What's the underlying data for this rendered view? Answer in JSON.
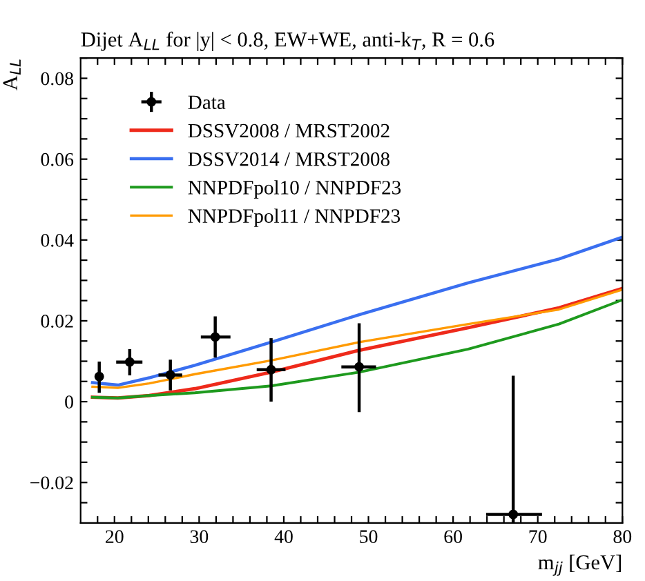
{
  "chart_data": {
    "type": "line",
    "title": "Dijet A$_{LL}$ for |y| < 0.8, EW+WE, anti-k$_{T}$, R = 0.6",
    "xlabel": "m$_{jj}$ [GeV]",
    "ylabel": "A$_{LL}$",
    "xlim": [
      16,
      80
    ],
    "ylim": [
      -0.03,
      0.085
    ],
    "xticks": [
      {
        "value": 18,
        "label": null
      },
      20,
      {
        "value": 22,
        "label": null
      },
      {
        "value": 24,
        "label": null
      },
      {
        "value": 26,
        "label": null
      },
      {
        "value": 28,
        "label": null
      },
      30,
      {
        "value": 32,
        "label": null
      },
      {
        "value": 34,
        "label": null
      },
      {
        "value": 36,
        "label": null
      },
      {
        "value": 38,
        "label": null
      },
      40,
      {
        "value": 42,
        "label": null
      },
      {
        "value": 44,
        "label": null
      },
      {
        "value": 46,
        "label": null
      },
      {
        "value": 48,
        "label": null
      },
      50,
      {
        "value": 52,
        "label": null
      },
      {
        "value": 54,
        "label": null
      },
      {
        "value": 56,
        "label": null
      },
      {
        "value": 58,
        "label": null
      },
      60,
      {
        "value": 62,
        "label": null
      },
      {
        "value": 64,
        "label": null
      },
      {
        "value": 66,
        "label": null
      },
      {
        "value": 68,
        "label": null
      },
      70,
      {
        "value": 72,
        "label": null
      },
      {
        "value": 74,
        "label": null
      },
      {
        "value": 76,
        "label": null
      },
      {
        "value": 78,
        "label": null
      },
      80
    ],
    "yticks": [
      {
        "value": -0.025,
        "label": null
      },
      {
        "value": -0.02,
        "label": "−0.02"
      },
      {
        "value": -0.015,
        "label": null
      },
      {
        "value": -0.01,
        "label": null
      },
      {
        "value": -0.005,
        "label": null
      },
      0,
      {
        "value": 0.005,
        "label": null
      },
      {
        "value": 0.01,
        "label": null
      },
      {
        "value": 0.015,
        "label": null
      },
      0.02,
      {
        "value": 0.025,
        "label": null
      },
      {
        "value": 0.03,
        "label": null
      },
      {
        "value": 0.035,
        "label": null
      },
      0.04,
      {
        "value": 0.045,
        "label": null
      },
      {
        "value": 0.05,
        "label": null
      },
      {
        "value": 0.055,
        "label": null
      },
      0.06,
      {
        "value": 0.065,
        "label": null
      },
      {
        "value": 0.07,
        "label": null
      },
      {
        "value": 0.075,
        "label": null
      },
      0.08,
      {
        "value": 0.085,
        "label": null
      }
    ],
    "grid": false,
    "legend": "top left",
    "series": [
      {
        "name": "Data",
        "type": "scatter",
        "color": "#000000",
        "marker": "circle",
        "x": [
          18.2,
          21.8,
          26.6,
          31.9,
          38.5,
          48.9,
          67.1
        ],
        "values": [
          0.0062,
          0.0098,
          0.0066,
          0.016,
          0.0079,
          0.0086,
          -0.0279
        ],
        "errors": [
          [
            0.0022,
            0.0099
          ],
          [
            0.0065,
            0.013
          ],
          [
            0.0028,
            0.0104
          ],
          [
            0.0109,
            0.0211
          ],
          [
            0.0,
            0.0157
          ],
          [
            -0.0026,
            0.0194
          ],
          [
            -0.03,
            0.0064
          ]
        ],
        "xerrors": [
          [
            17.7,
            18.7
          ],
          [
            20.2,
            23.3
          ],
          [
            25.2,
            28.0
          ],
          [
            30.2,
            33.7
          ],
          [
            36.8,
            40.2
          ],
          [
            46.8,
            50.9
          ],
          [
            63.9,
            70.5
          ]
        ]
      },
      {
        "name": "DSSV2008 / MRST2002",
        "color": "#ee2a1b",
        "x": [
          17.4,
          20.4,
          24.1,
          29.5,
          38.5,
          48.9,
          61.8,
          72.5,
          80
        ],
        "values": [
          0.0011,
          0.0009,
          0.0015,
          0.0032,
          0.0073,
          0.0127,
          0.0183,
          0.0232,
          0.028
        ]
      },
      {
        "name": "DSSV2014 / MRST2008",
        "color": "#3a6ff0",
        "x": [
          17.4,
          20.4,
          24.1,
          29.5,
          38.5,
          48.9,
          61.8,
          72.5,
          80
        ],
        "values": [
          0.0047,
          0.0041,
          0.0059,
          0.009,
          0.0147,
          0.0215,
          0.0294,
          0.0353,
          0.0407
        ]
      },
      {
        "name": "NNPDFpol10 / NNPDF23",
        "color": "#1e9a1e",
        "x": [
          17.4,
          20.4,
          24.1,
          29.5,
          38.5,
          48.9,
          61.8,
          72.5,
          80
        ],
        "values": [
          0.0011,
          0.0009,
          0.0015,
          0.0022,
          0.0039,
          0.0073,
          0.013,
          0.0192,
          0.0252
        ]
      },
      {
        "name": "NNPDFpol11 / NNPDF23",
        "color": "#ff9a00",
        "x": [
          17.4,
          20.4,
          24.1,
          29.5,
          38.5,
          48.9,
          61.8,
          72.5,
          80
        ],
        "values": [
          0.0037,
          0.0034,
          0.0045,
          0.0068,
          0.0102,
          0.0147,
          0.0192,
          0.0228,
          0.0277
        ]
      }
    ]
  }
}
